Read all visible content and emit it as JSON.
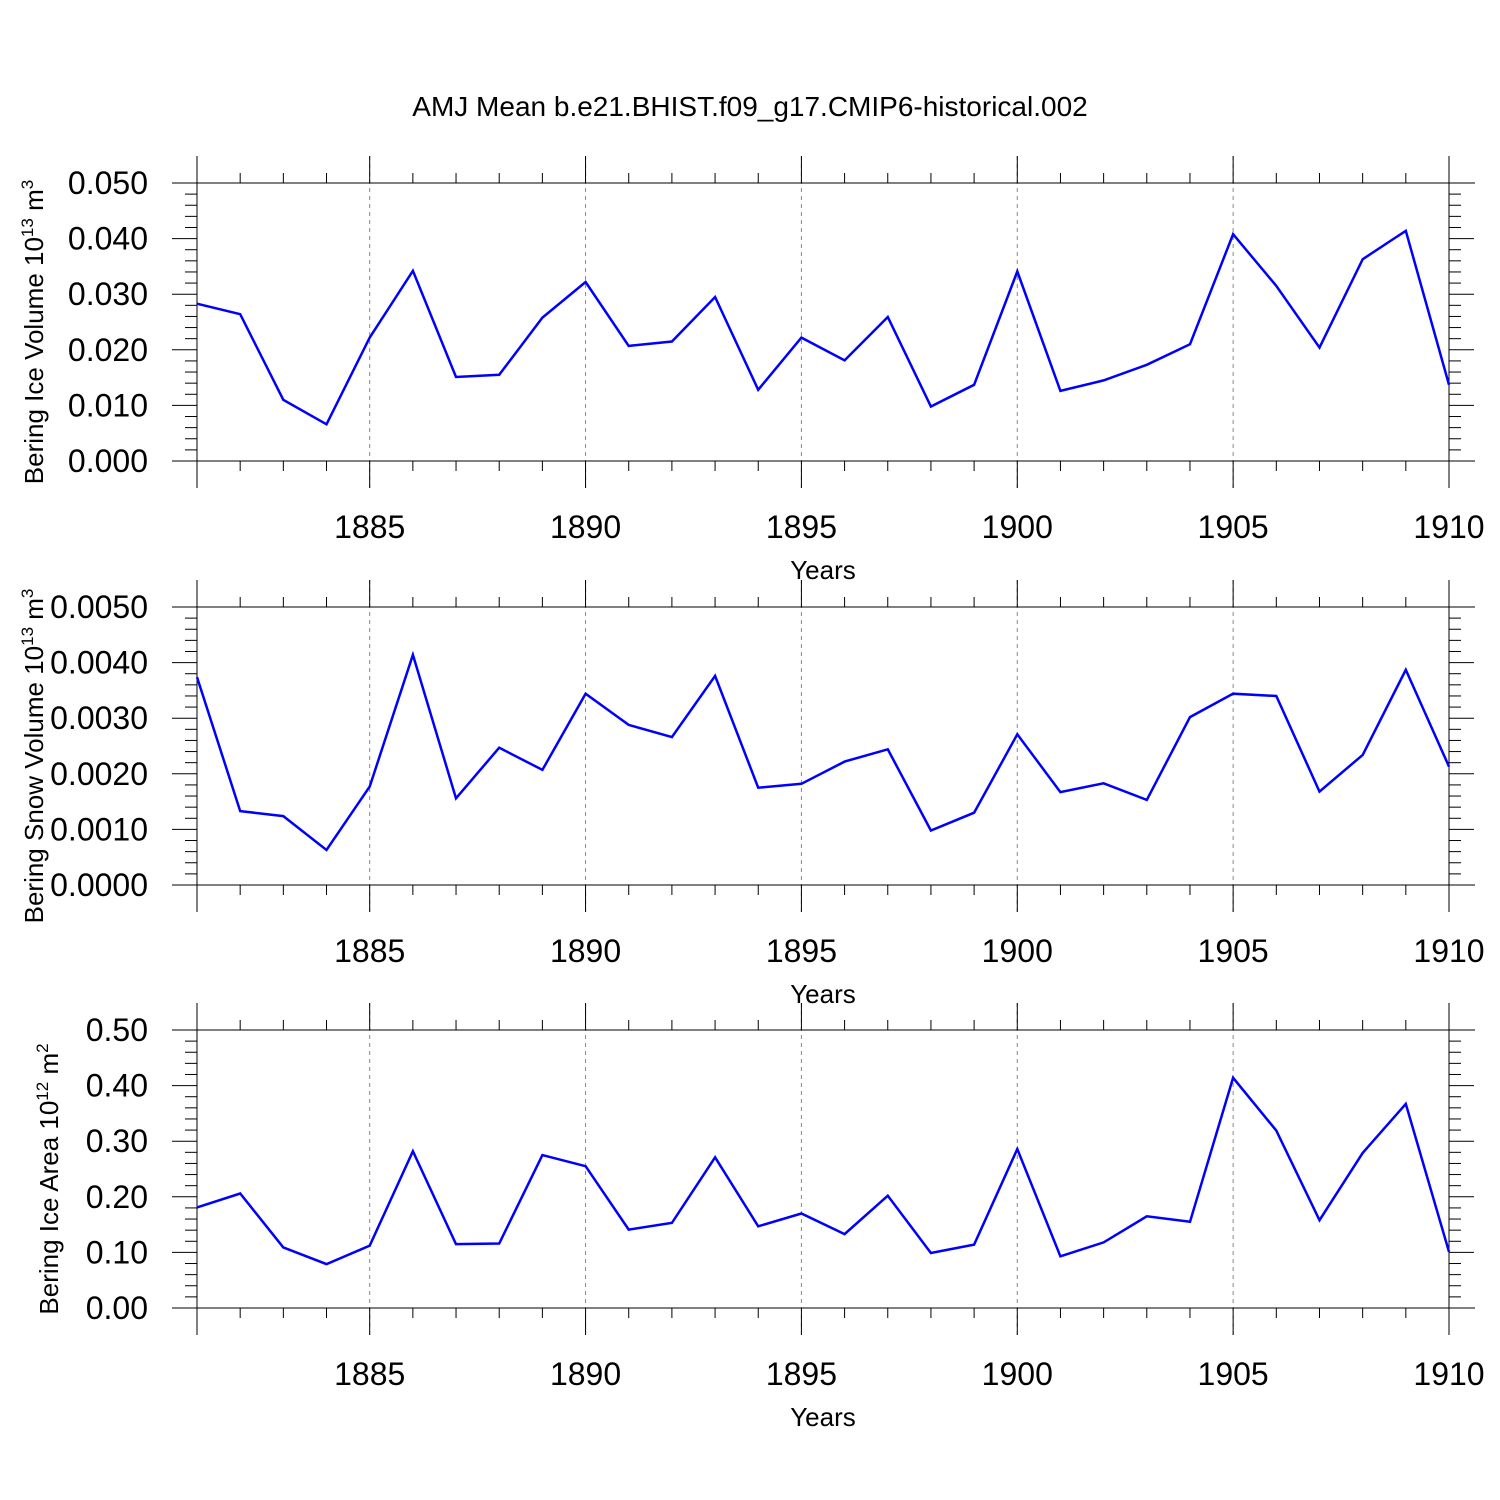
{
  "title": "AMJ Mean b.e21.BHIST.f09_g17.CMIP6-historical.002",
  "chart_data": [
    {
      "type": "line",
      "ylabel": "Bering Ice Volume 10",
      "ylabel_exp": "13",
      "ylabel_unit": " m",
      "ylabel_unit_exp": "3",
      "xlabel": "Years",
      "xlim": [
        1881,
        1910
      ],
      "ylim": [
        0,
        0.05
      ],
      "yticks": [
        0,
        0.01,
        0.02,
        0.03,
        0.04,
        0.05
      ],
      "ytick_labels": [
        "0.000",
        "0.010",
        "0.020",
        "0.030",
        "0.040",
        "0.050"
      ],
      "xticks": [
        1885,
        1890,
        1895,
        1900,
        1905,
        1910
      ],
      "xtick_labels": [
        "1885",
        "1890",
        "1895",
        "1900",
        "1905",
        "1910"
      ],
      "line_color": "#0000ff",
      "x": [
        1881,
        1882,
        1883,
        1884,
        1885,
        1886,
        1887,
        1888,
        1889,
        1890,
        1891,
        1892,
        1893,
        1894,
        1895,
        1896,
        1897,
        1898,
        1899,
        1900,
        1901,
        1902,
        1903,
        1904,
        1905,
        1906,
        1907,
        1908,
        1909,
        1910
      ],
      "values": [
        0.0283,
        0.0264,
        0.011,
        0.0066,
        0.0222,
        0.0342,
        0.0151,
        0.0155,
        0.0258,
        0.0322,
        0.0207,
        0.0215,
        0.0295,
        0.0128,
        0.0222,
        0.0181,
        0.0259,
        0.0098,
        0.0137,
        0.0341,
        0.0126,
        0.0145,
        0.0173,
        0.021,
        0.0408,
        0.0315,
        0.0204,
        0.0363,
        0.0414,
        0.0137
      ]
    },
    {
      "type": "line",
      "ylabel": "Bering Snow Volume 10",
      "ylabel_exp": "13",
      "ylabel_unit": " m",
      "ylabel_unit_exp": "3",
      "xlabel": "Years",
      "xlim": [
        1881,
        1910
      ],
      "ylim": [
        0,
        0.005
      ],
      "yticks": [
        0,
        0.001,
        0.002,
        0.003,
        0.004,
        0.005
      ],
      "ytick_labels": [
        "0.0000",
        "0.0010",
        "0.0020",
        "0.0030",
        "0.0040",
        "0.0050"
      ],
      "xticks": [
        1885,
        1890,
        1895,
        1900,
        1905,
        1910
      ],
      "xtick_labels": [
        "1885",
        "1890",
        "1895",
        "1900",
        "1905",
        "1910"
      ],
      "line_color": "#0000ff",
      "x": [
        1881,
        1882,
        1883,
        1884,
        1885,
        1886,
        1887,
        1888,
        1889,
        1890,
        1891,
        1892,
        1893,
        1894,
        1895,
        1896,
        1897,
        1898,
        1899,
        1900,
        1901,
        1902,
        1903,
        1904,
        1905,
        1906,
        1907,
        1908,
        1909,
        1910
      ],
      "values": [
        0.00374,
        0.00133,
        0.00124,
        0.00063,
        0.00177,
        0.00414,
        0.00156,
        0.00247,
        0.00207,
        0.00344,
        0.00288,
        0.00266,
        0.00376,
        0.00175,
        0.00182,
        0.00222,
        0.00244,
        0.00098,
        0.0013,
        0.00271,
        0.00167,
        0.00183,
        0.00153,
        0.00302,
        0.00344,
        0.0034,
        0.00168,
        0.00234,
        0.00387,
        0.00213
      ]
    },
    {
      "type": "line",
      "ylabel": "Bering Ice Area 10",
      "ylabel_exp": "12",
      "ylabel_unit": " m",
      "ylabel_unit_exp": "2",
      "xlabel": "Years",
      "xlim": [
        1881,
        1910
      ],
      "ylim": [
        0,
        0.5
      ],
      "yticks": [
        0,
        0.1,
        0.2,
        0.3,
        0.4,
        0.5
      ],
      "ytick_labels": [
        "0.00",
        "0.10",
        "0.20",
        "0.30",
        "0.40",
        "0.50"
      ],
      "xticks": [
        1885,
        1890,
        1895,
        1900,
        1905,
        1910
      ],
      "xtick_labels": [
        "1885",
        "1890",
        "1895",
        "1900",
        "1905",
        "1910"
      ],
      "line_color": "#0000ff",
      "x": [
        1881,
        1882,
        1883,
        1884,
        1885,
        1886,
        1887,
        1888,
        1889,
        1890,
        1891,
        1892,
        1893,
        1894,
        1895,
        1896,
        1897,
        1898,
        1899,
        1900,
        1901,
        1902,
        1903,
        1904,
        1905,
        1906,
        1907,
        1908,
        1909,
        1910
      ],
      "values": [
        0.181,
        0.206,
        0.109,
        0.079,
        0.112,
        0.282,
        0.115,
        0.116,
        0.275,
        0.255,
        0.141,
        0.153,
        0.271,
        0.147,
        0.17,
        0.133,
        0.202,
        0.099,
        0.114,
        0.286,
        0.093,
        0.118,
        0.165,
        0.155,
        0.414,
        0.319,
        0.158,
        0.279,
        0.367,
        0.101
      ]
    }
  ]
}
